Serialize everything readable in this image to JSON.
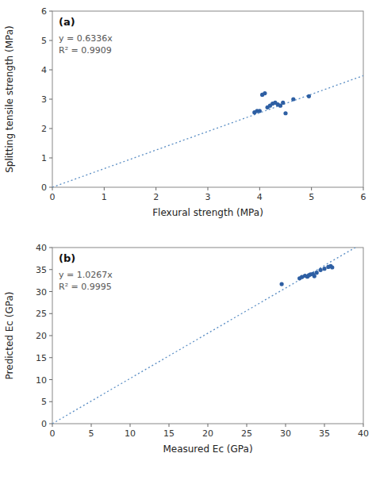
{
  "chart_data": [
    {
      "type": "scatter",
      "panel_label": "(a)",
      "x": [
        3.9,
        3.95,
        4.0,
        4.05,
        4.1,
        4.15,
        4.2,
        4.25,
        4.3,
        4.35,
        4.4,
        4.45,
        4.5,
        4.65,
        4.95
      ],
      "values": [
        2.55,
        2.6,
        2.6,
        3.15,
        3.2,
        2.72,
        2.78,
        2.85,
        2.88,
        2.82,
        2.78,
        2.88,
        2.52,
        3.0,
        3.1
      ],
      "color": "#2e5fa3",
      "trend_line": {
        "slope": 0.6336,
        "color": "#5b8ec4",
        "line_style": "dotted"
      },
      "annotations": [
        "y = 0.6336x",
        "R² = 0.9909"
      ],
      "xlabel": "Flexural strength (MPa)",
      "ylabel": "Splitting tensile strength (MPa)",
      "xlim": [
        0,
        6
      ],
      "ylim": [
        0,
        6
      ],
      "xticks": [
        0,
        1,
        2,
        3,
        4,
        5,
        6
      ],
      "yticks": [
        0,
        1,
        2,
        3,
        4,
        5,
        6
      ]
    },
    {
      "type": "scatter",
      "panel_label": "(b)",
      "x": [
        29.5,
        31.8,
        32.1,
        32.5,
        32.8,
        33.0,
        33.2,
        33.5,
        33.7,
        34.0,
        34.5,
        35.0,
        35.5,
        35.8,
        36.0
      ],
      "values": [
        31.7,
        33.0,
        33.3,
        33.6,
        33.4,
        33.7,
        33.9,
        34.0,
        33.5,
        34.3,
        34.9,
        35.2,
        35.6,
        35.8,
        35.5
      ],
      "color": "#2e5fa3",
      "trend_line": {
        "slope": 1.0267,
        "color": "#5b8ec4",
        "line_style": "dotted"
      },
      "annotations": [
        "y = 1.0267x",
        "R² = 0.9995"
      ],
      "xlabel": "Measured Ec (GPa)",
      "ylabel": "Predicted Ec (GPa)",
      "xlim": [
        0,
        40
      ],
      "ylim": [
        0,
        40
      ],
      "xticks": [
        0,
        5,
        10,
        15,
        20,
        25,
        30,
        35,
        40
      ],
      "yticks": [
        0,
        5,
        10,
        15,
        20,
        25,
        30,
        35,
        40
      ]
    }
  ]
}
